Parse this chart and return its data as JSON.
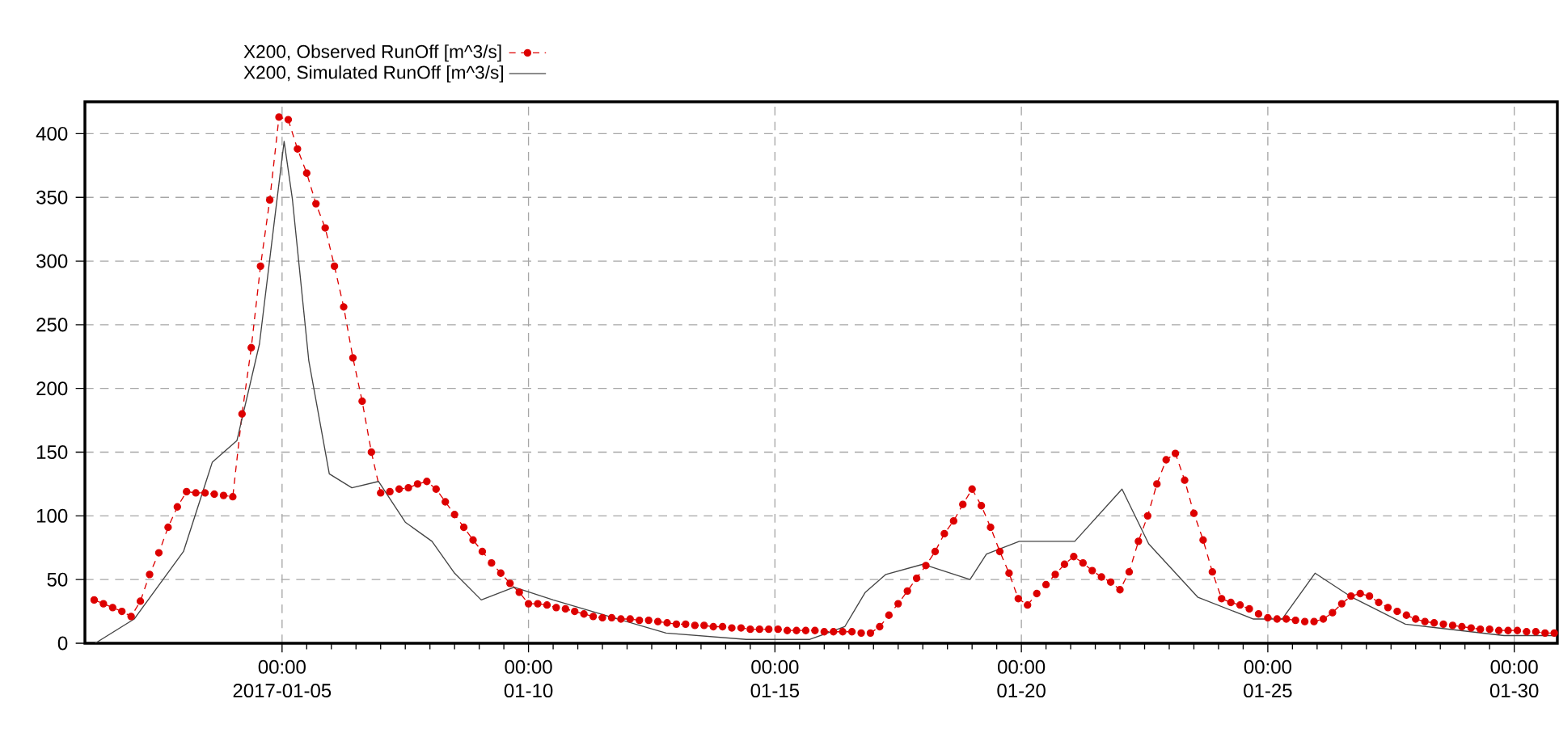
{
  "chart_data": {
    "type": "line",
    "xlim": [
      "2017-01-01T00:00",
      "2017-01-30T21:00"
    ],
    "xticks": [
      {
        "value": "2017-01-05T00:00",
        "label": "00:00 2017-01-05"
      },
      {
        "value": "2017-01-10T00:00",
        "label": "00:00 01-10"
      },
      {
        "value": "2017-01-15T00:00",
        "label": "00:00 01-15"
      },
      {
        "value": "2017-01-20T00:00",
        "label": "00:00 01-20"
      },
      {
        "value": "2017-01-25T00:00",
        "label": "00:00 01-25"
      },
      {
        "value": "2017-01-30T00:00",
        "label": "00:00 01-30"
      }
    ],
    "ylim": [
      0,
      425
    ],
    "yticks": [
      0,
      50,
      100,
      150,
      200,
      250,
      300,
      350,
      400
    ],
    "grid": true,
    "legend": "top left",
    "series": [
      {
        "name": "X200, Observed RunOff [m^3/s]",
        "color": "#dd0000",
        "marker": "circle",
        "line_style": "dashed",
        "x": [
          "2017-01-01T04:30",
          "2017-01-01T09:00",
          "2017-01-01T13:30",
          "2017-01-01T18:00",
          "2017-01-01T22:30",
          "2017-01-02T03:00",
          "2017-01-02T07:30",
          "2017-01-02T12:00",
          "2017-01-02T16:30",
          "2017-01-02T21:00",
          "2017-01-03T01:30",
          "2017-01-03T06:00",
          "2017-01-03T10:30",
          "2017-01-03T15:00",
          "2017-01-03T19:30",
          "2017-01-04T00:00",
          "2017-01-04T04:30",
          "2017-01-04T09:00",
          "2017-01-04T13:30",
          "2017-01-04T18:00",
          "2017-01-04T22:30",
          "2017-01-05T03:00",
          "2017-01-05T07:30",
          "2017-01-05T12:00",
          "2017-01-05T16:30",
          "2017-01-05T21:00",
          "2017-01-06T01:30",
          "2017-01-06T06:00",
          "2017-01-06T10:30",
          "2017-01-06T15:00",
          "2017-01-06T19:30",
          "2017-01-07T00:00",
          "2017-01-07T04:30",
          "2017-01-07T09:00",
          "2017-01-07T13:30",
          "2017-01-07T18:00",
          "2017-01-07T22:30",
          "2017-01-08T03:00",
          "2017-01-08T07:30",
          "2017-01-08T12:00",
          "2017-01-08T16:30",
          "2017-01-08T21:00",
          "2017-01-09T01:30",
          "2017-01-09T06:00",
          "2017-01-09T10:30",
          "2017-01-09T15:00",
          "2017-01-09T19:30",
          "2017-01-10T00:00",
          "2017-01-10T04:30",
          "2017-01-10T09:00",
          "2017-01-10T13:30",
          "2017-01-10T18:00",
          "2017-01-10T22:30",
          "2017-01-11T03:00",
          "2017-01-11T07:30",
          "2017-01-11T12:00",
          "2017-01-11T16:30",
          "2017-01-11T21:00",
          "2017-01-12T01:30",
          "2017-01-12T06:00",
          "2017-01-12T10:30",
          "2017-01-12T15:00",
          "2017-01-12T19:30",
          "2017-01-13T00:00",
          "2017-01-13T04:30",
          "2017-01-13T09:00",
          "2017-01-13T13:30",
          "2017-01-13T18:00",
          "2017-01-13T22:30",
          "2017-01-14T03:00",
          "2017-01-14T07:30",
          "2017-01-14T12:00",
          "2017-01-14T16:30",
          "2017-01-14T21:00",
          "2017-01-15T01:30",
          "2017-01-15T06:00",
          "2017-01-15T10:30",
          "2017-01-15T15:00",
          "2017-01-15T19:30",
          "2017-01-16T00:00",
          "2017-01-16T04:30",
          "2017-01-16T09:00",
          "2017-01-16T13:30",
          "2017-01-16T18:00",
          "2017-01-16T22:30",
          "2017-01-17T03:00",
          "2017-01-17T07:30",
          "2017-01-17T12:00",
          "2017-01-17T16:30",
          "2017-01-17T21:00",
          "2017-01-18T01:30",
          "2017-01-18T06:00",
          "2017-01-18T10:30",
          "2017-01-18T15:00",
          "2017-01-18T19:30",
          "2017-01-19T00:00",
          "2017-01-19T04:30",
          "2017-01-19T09:00",
          "2017-01-19T13:30",
          "2017-01-19T18:00",
          "2017-01-19T22:30",
          "2017-01-20T03:00",
          "2017-01-20T07:30",
          "2017-01-20T12:00",
          "2017-01-20T16:30",
          "2017-01-20T21:00",
          "2017-01-21T01:30",
          "2017-01-21T06:00",
          "2017-01-21T10:30",
          "2017-01-21T15:00",
          "2017-01-21T19:30",
          "2017-01-22T00:00",
          "2017-01-22T04:30",
          "2017-01-22T09:00",
          "2017-01-22T13:30",
          "2017-01-22T18:00",
          "2017-01-22T22:30",
          "2017-01-23T03:00",
          "2017-01-23T07:30",
          "2017-01-23T12:00",
          "2017-01-23T16:30",
          "2017-01-23T21:00",
          "2017-01-24T01:30",
          "2017-01-24T06:00",
          "2017-01-24T10:30",
          "2017-01-24T15:00",
          "2017-01-24T19:30",
          "2017-01-25T00:00",
          "2017-01-25T04:30",
          "2017-01-25T09:00",
          "2017-01-25T13:30",
          "2017-01-25T18:00",
          "2017-01-25T22:30",
          "2017-01-26T03:00",
          "2017-01-26T07:30",
          "2017-01-26T12:00",
          "2017-01-26T16:30",
          "2017-01-26T21:00",
          "2017-01-27T01:30",
          "2017-01-27T06:00",
          "2017-01-27T10:30",
          "2017-01-27T15:00",
          "2017-01-27T19:30",
          "2017-01-28T00:00",
          "2017-01-28T04:30",
          "2017-01-28T09:00",
          "2017-01-28T13:30",
          "2017-01-28T18:00",
          "2017-01-28T22:30",
          "2017-01-29T03:00",
          "2017-01-29T07:30",
          "2017-01-29T12:00",
          "2017-01-29T16:30",
          "2017-01-29T21:00",
          "2017-01-30T01:30",
          "2017-01-30T06:00",
          "2017-01-30T10:30",
          "2017-01-30T15:00",
          "2017-01-30T19:30"
        ],
        "values": [
          34,
          31,
          28,
          25,
          21,
          33,
          54,
          71,
          91,
          107,
          119,
          118,
          118,
          117,
          116,
          115,
          180,
          232,
          296,
          348,
          413,
          411,
          388,
          369,
          345,
          326,
          296,
          264,
          224,
          190,
          150,
          118,
          119,
          121,
          122,
          125,
          127,
          121,
          111,
          101,
          91,
          81,
          72,
          63,
          55,
          47,
          40,
          31,
          31,
          30,
          28,
          27,
          25,
          23,
          21,
          20,
          20,
          19,
          19,
          18,
          18,
          17,
          16,
          15,
          15,
          14,
          14,
          13,
          13,
          12,
          12,
          11,
          11,
          11,
          11,
          10,
          10,
          10,
          10,
          9,
          9,
          9,
          9,
          8,
          8,
          13,
          22,
          31,
          41,
          51,
          61,
          72,
          86,
          96,
          109,
          121,
          108,
          91,
          72,
          55,
          35,
          30,
          39,
          46,
          54,
          62,
          68,
          63,
          57,
          52,
          48,
          42,
          56,
          80,
          100,
          125,
          144,
          149,
          128,
          102,
          81,
          56,
          35,
          32,
          30,
          27,
          23,
          20,
          19,
          19,
          18,
          17,
          17,
          19,
          24,
          31,
          37,
          39,
          37,
          32,
          28,
          25,
          22,
          19,
          17,
          16,
          15,
          14,
          13,
          12,
          11,
          11,
          10,
          10,
          10,
          9,
          9,
          8,
          8
        ]
      },
      {
        "name": "X200, Simulated RunOff [m^3/s]",
        "color": "#444444",
        "marker": "none",
        "line_style": "solid",
        "x": [
          "2017-01-01T05:00",
          "2017-01-02T00:00",
          "2017-01-03T00:00",
          "2017-01-03T14:00",
          "2017-01-04T02:00",
          "2017-01-04T13:00",
          "2017-01-04T20:00",
          "2017-01-05T01:00",
          "2017-01-05T05:00",
          "2017-01-05T13:00",
          "2017-01-05T23:00",
          "2017-01-06T10:00",
          "2017-01-06T23:00",
          "2017-01-07T12:00",
          "2017-01-08T01:00",
          "2017-01-08T12:00",
          "2017-01-09T01:00",
          "2017-01-09T17:00",
          "2017-01-10T12:00",
          "2017-01-11T11:00",
          "2017-01-12T19:00",
          "2017-01-14T10:00",
          "2017-01-15T17:00",
          "2017-01-16T10:00",
          "2017-01-16T20:00",
          "2017-01-17T06:00",
          "2017-01-18T00:00",
          "2017-01-18T23:00",
          "2017-01-19T07:00",
          "2017-01-19T23:00",
          "2017-01-20T12:00",
          "2017-01-21T02:00",
          "2017-01-22T01:00",
          "2017-01-22T14:00",
          "2017-01-23T14:00",
          "2017-01-24T17:00",
          "2017-01-25T07:00",
          "2017-01-25T23:00",
          "2017-01-26T17:00",
          "2017-01-27T19:00",
          "2017-01-29T19:00",
          "2017-01-30T19:00"
        ],
        "values": [
          0,
          19,
          72,
          142,
          159,
          235,
          328,
          394,
          349,
          222,
          133,
          122,
          127,
          95,
          80,
          55,
          34,
          44,
          34,
          23,
          8,
          3,
          3,
          13,
          40,
          54,
          62,
          50,
          70,
          80,
          80,
          80,
          121,
          78,
          36,
          19,
          19,
          55,
          36,
          15,
          6,
          6
        ]
      }
    ]
  }
}
